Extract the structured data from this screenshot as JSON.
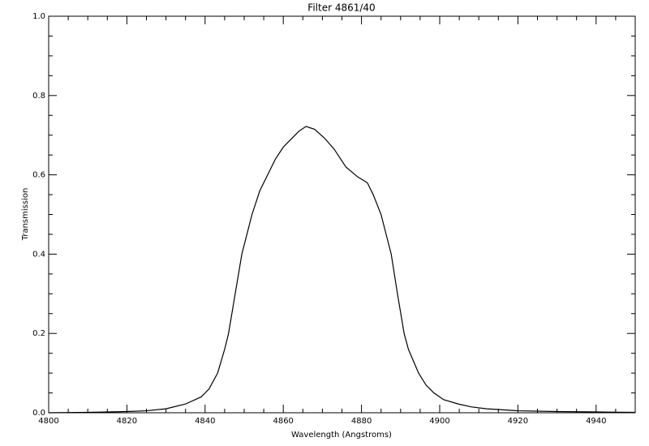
{
  "chart_data": {
    "type": "line",
    "title": "Filter 4861/40",
    "x_label": "Wavelength (Angstroms)",
    "y_label": "Transmission",
    "x": [
      4800,
      4810,
      4820,
      4825,
      4830,
      4835,
      4839,
      4841,
      4843.2,
      4845,
      4846,
      4847.7,
      4849.4,
      4852,
      4854,
      4856,
      4858,
      4860,
      4862,
      4864,
      4865.8,
      4868,
      4870.5,
      4873,
      4876,
      4879,
      4881.5,
      4883,
      4885,
      4887.6,
      4889.2,
      4890.9,
      4892,
      4894.6,
      4896.5,
      4898.5,
      4901,
      4904.8,
      4908,
      4912,
      4920,
      4930,
      4940,
      4950
    ],
    "series": [
      {
        "name": "Transmission",
        "color": "#000000",
        "values": [
          0.0,
          0.001,
          0.003,
          0.005,
          0.01,
          0.022,
          0.04,
          0.06,
          0.1,
          0.16,
          0.2,
          0.3,
          0.4,
          0.5,
          0.56,
          0.6,
          0.64,
          0.67,
          0.69,
          0.71,
          0.722,
          0.715,
          0.693,
          0.665,
          0.62,
          0.595,
          0.58,
          0.55,
          0.5,
          0.4,
          0.3,
          0.2,
          0.16,
          0.1,
          0.07,
          0.05,
          0.033,
          0.022,
          0.015,
          0.01,
          0.005,
          0.003,
          0.002,
          0.001
        ]
      }
    ],
    "xlim": [
      4800,
      4950
    ],
    "ylim": [
      0,
      1
    ],
    "xticks": [
      4800,
      4820,
      4840,
      4860,
      4880,
      4900,
      4920,
      4940
    ],
    "yticks": [
      {
        "value": 0,
        "label": "0.0"
      },
      0.2,
      0.4,
      0.6,
      0.8,
      {
        "value": 1,
        "label": "1.0"
      }
    ],
    "x_minor_divisions": 4,
    "y_minor_divisions": 4,
    "grid": false
  }
}
